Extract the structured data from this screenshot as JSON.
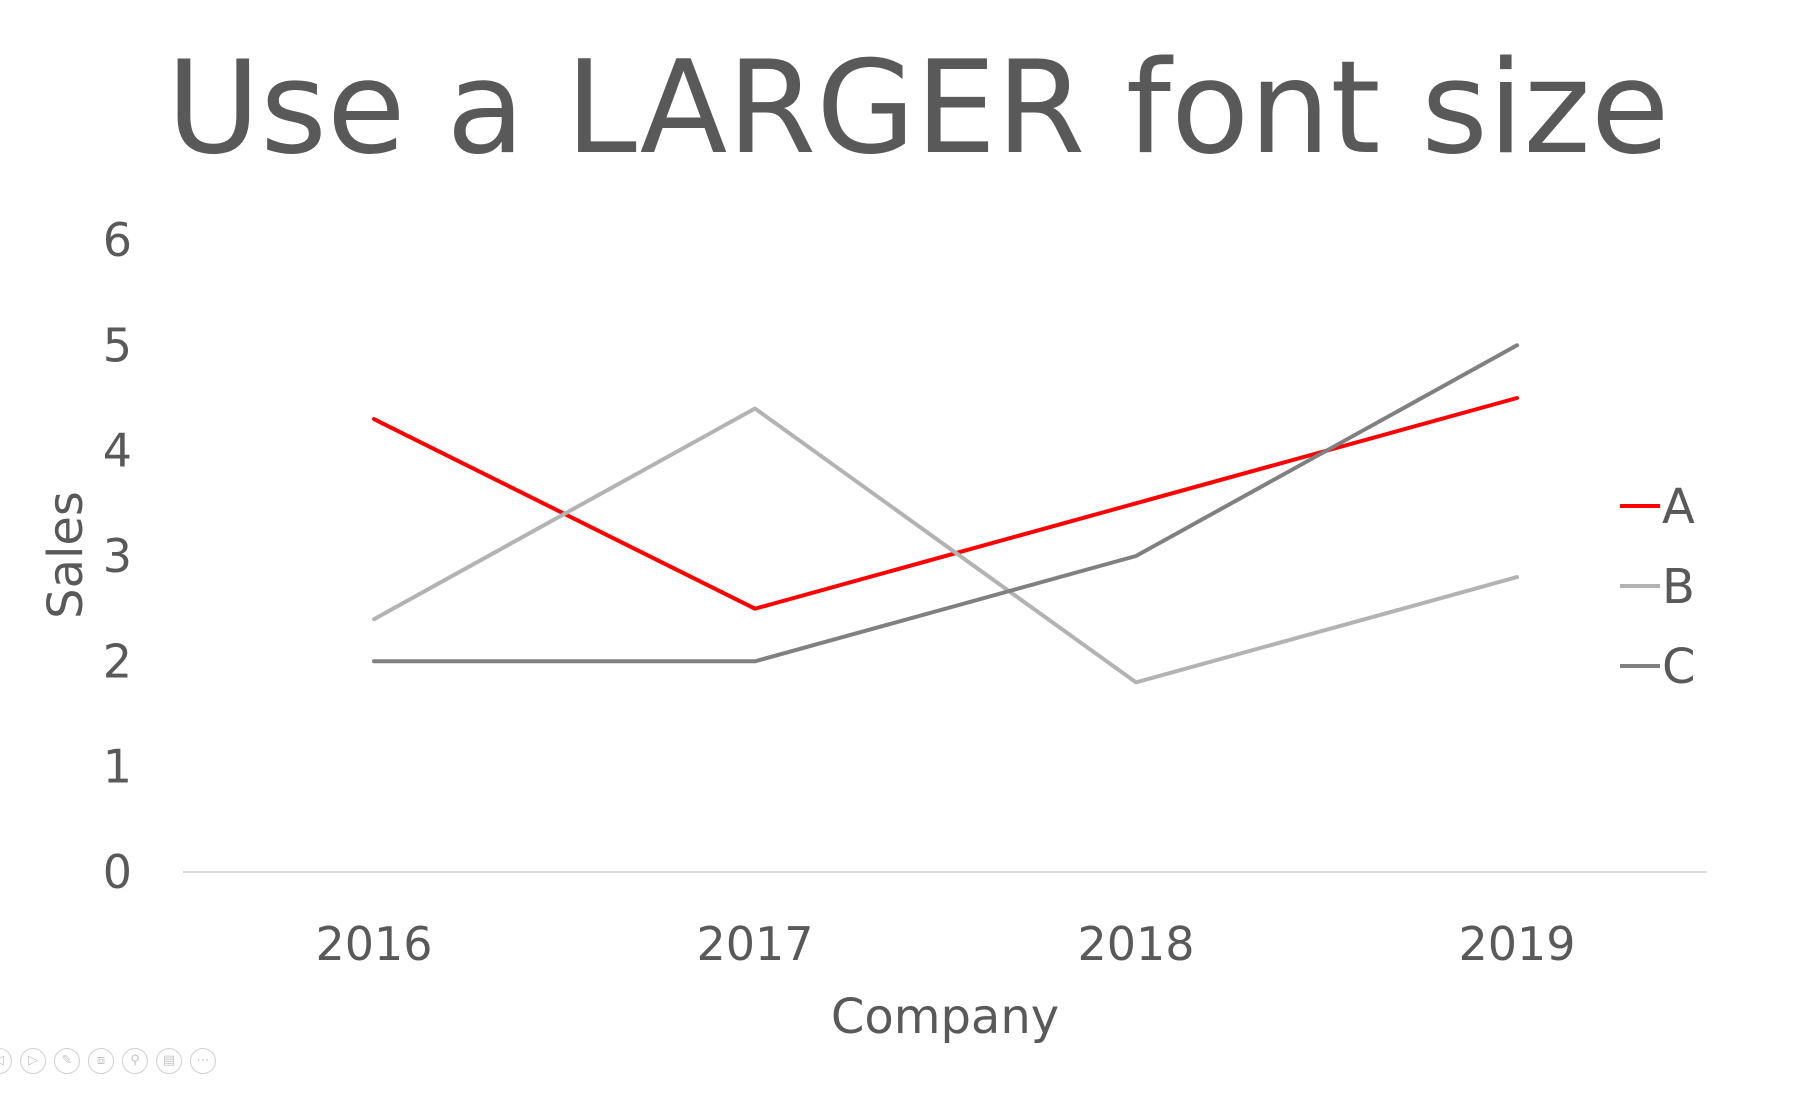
{
  "chart_data": {
    "type": "line",
    "title": "Use a LARGER font size",
    "xlabel": "Company",
    "ylabel": "Sales",
    "categories": [
      "2016",
      "2017",
      "2018",
      "2019"
    ],
    "ylim": [
      0,
      6
    ],
    "yticks": [
      "0",
      "1",
      "2",
      "3",
      "4",
      "5",
      "6"
    ],
    "grid": false,
    "legend_position": "right",
    "series": [
      {
        "name": "A",
        "values": [
          4.3,
          2.5,
          3.5,
          4.5
        ],
        "color": "#ff0000"
      },
      {
        "name": "B",
        "values": [
          2.4,
          4.4,
          1.8,
          2.8
        ],
        "color": "#b3b3b3"
      },
      {
        "name": "C",
        "values": [
          2.0,
          2.0,
          3.0,
          5.0
        ],
        "color": "#808080"
      }
    ]
  },
  "toolbar": {
    "icons": [
      "previous-icon",
      "next-icon",
      "pen-icon",
      "slides-icon",
      "zoom-icon",
      "subtitles-icon",
      "more-icon"
    ]
  }
}
